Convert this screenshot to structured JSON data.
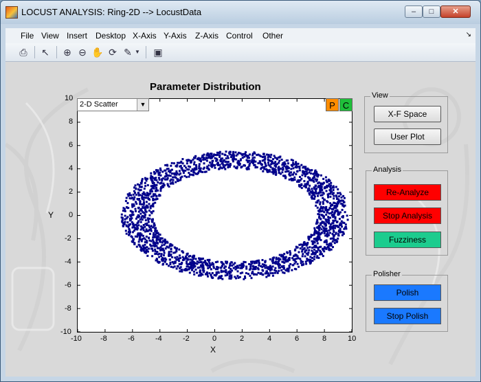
{
  "window": {
    "title": "LOCUST ANALYSIS: Ring-2D --> LocustData",
    "controls": {
      "minimize": "–",
      "maximize": "□",
      "close": "✕"
    }
  },
  "menu": {
    "items": [
      "File",
      "View",
      "Insert",
      "Desktop",
      "X-Axis",
      "Y-Axis",
      "Z-Axis",
      "Control",
      "Other"
    ],
    "overflow_arrow": "↘"
  },
  "toolbar": {
    "icons": [
      "print-icon",
      "select-arrow-icon",
      "zoom-in-icon",
      "zoom-out-icon",
      "pan-hand-icon",
      "rotate-icon",
      "brush-icon",
      "dock-figure-icon"
    ]
  },
  "plot": {
    "plot_type_select": "2-D Scatter",
    "p_button": "P",
    "c_button": "C"
  },
  "chart_data": {
    "type": "scatter",
    "title": "Parameter Distribution",
    "xlabel": "X",
    "ylabel": "Y",
    "xlim": [
      -10,
      10
    ],
    "ylim": [
      -10,
      10
    ],
    "xticks": [
      "-10",
      "-8",
      "-6",
      "-4",
      "-2",
      "0",
      "2",
      "4",
      "6",
      "8",
      "10"
    ],
    "yticks": [
      "10",
      "8",
      "6",
      "4",
      "2",
      "0",
      "-2",
      "-4",
      "-6",
      "-8",
      "-10"
    ],
    "shape": "elliptical ring",
    "center": [
      1.5,
      0
    ],
    "inner_radii": [
      6.0,
      4.0
    ],
    "outer_radii": [
      8.3,
      5.5
    ],
    "marker_color": "#00008b",
    "grid": false
  },
  "view_panel": {
    "title": "View",
    "buttons": [
      "X-F Space",
      "User Plot"
    ]
  },
  "analysis_panel": {
    "title": "Analysis",
    "buttons": [
      "Re-Analyze",
      "Stop Analysis",
      "Fuzziness"
    ]
  },
  "polisher_panel": {
    "title": "Polisher",
    "buttons": [
      "Polish",
      "Stop Polish"
    ]
  },
  "colors": {
    "red_button": "#ff0000",
    "teal_button": "#1ccc8e",
    "blue_button": "#1a79ff",
    "p_button": "#ff8c00",
    "c_button": "#1fbf3a"
  }
}
